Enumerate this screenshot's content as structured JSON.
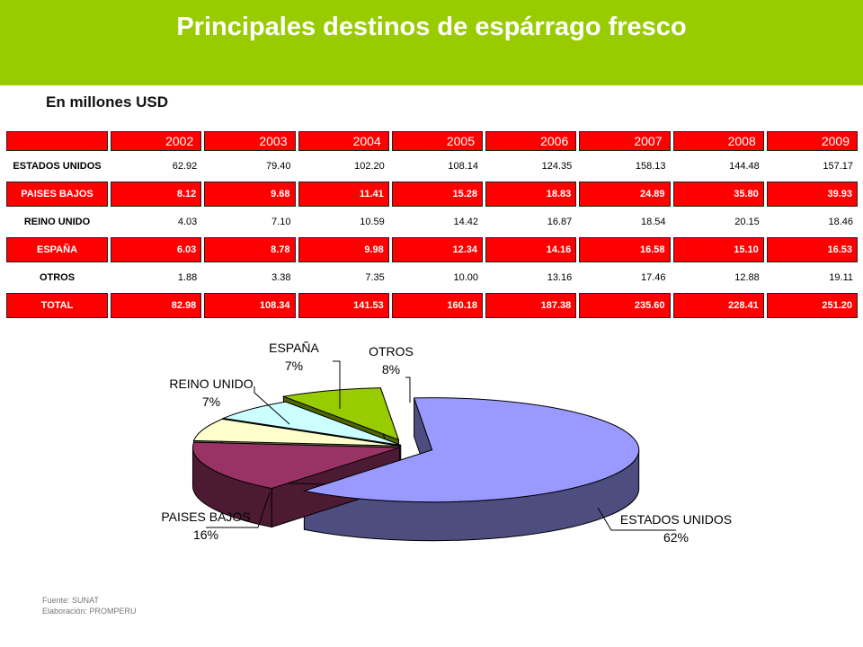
{
  "title": "Principales destinos de espárrago fresco",
  "subtitle": "En millones USD",
  "table": {
    "years": [
      "2002",
      "2003",
      "2004",
      "2005",
      "2006",
      "2007",
      "2008",
      "2009"
    ],
    "rows": [
      {
        "label": "ESTADOS UNIDOS",
        "values": [
          "62.92",
          "79.40",
          "102.20",
          "108.14",
          "124.35",
          "158.13",
          "144.48",
          "157.17"
        ],
        "style": "plain"
      },
      {
        "label": "PAISES BAJOS",
        "values": [
          "8.12",
          "9.68",
          "11.41",
          "15.28",
          "18.83",
          "24.89",
          "35.80",
          "39.93"
        ],
        "style": "red"
      },
      {
        "label": "REINO UNIDO",
        "values": [
          "4.03",
          "7.10",
          "10.59",
          "14.42",
          "16.87",
          "18.54",
          "20.15",
          "18.46"
        ],
        "style": "plain"
      },
      {
        "label": "ESPAÑA",
        "values": [
          "6.03",
          "8.78",
          "9.98",
          "12.34",
          "14.16",
          "16.58",
          "15.10",
          "16.53"
        ],
        "style": "red"
      },
      {
        "label": "OTROS",
        "values": [
          "1.88",
          "3.38",
          "7.35",
          "10.00",
          "13.16",
          "17.46",
          "12.88",
          "19.11"
        ],
        "style": "plain"
      },
      {
        "label": "TOTAL",
        "values": [
          "82.98",
          "108.34",
          "141.53",
          "160.18",
          "187.38",
          "235.60",
          "228.41",
          "251.20"
        ],
        "style": "red"
      }
    ]
  },
  "chart_data": {
    "type": "pie",
    "labels": [
      "ESTADOS UNIDOS",
      "PAISES BAJOS",
      "REINO UNIDO",
      "ESPAÑA",
      "OTROS"
    ],
    "values": [
      62,
      16,
      7,
      7,
      8
    ],
    "value_labels": [
      "62%",
      "16%",
      "7%",
      "7%",
      "8%"
    ],
    "colors": [
      "#9999ff",
      "#993366",
      "#ffffcc",
      "#ccffff",
      "#99cc00"
    ],
    "side_colors": [
      "#4d4d80",
      "#4d1a33",
      "#80805f",
      "#668080",
      "#4d6600"
    ],
    "exploded": [
      "OTROS"
    ],
    "legend": "none",
    "style": "3d"
  },
  "footer": {
    "source": "Fuente: SUNAT",
    "elaboration": "Elaboración: PROMPERU"
  },
  "colors": {
    "header": "#99cc00",
    "table_red": "#ff0000"
  }
}
